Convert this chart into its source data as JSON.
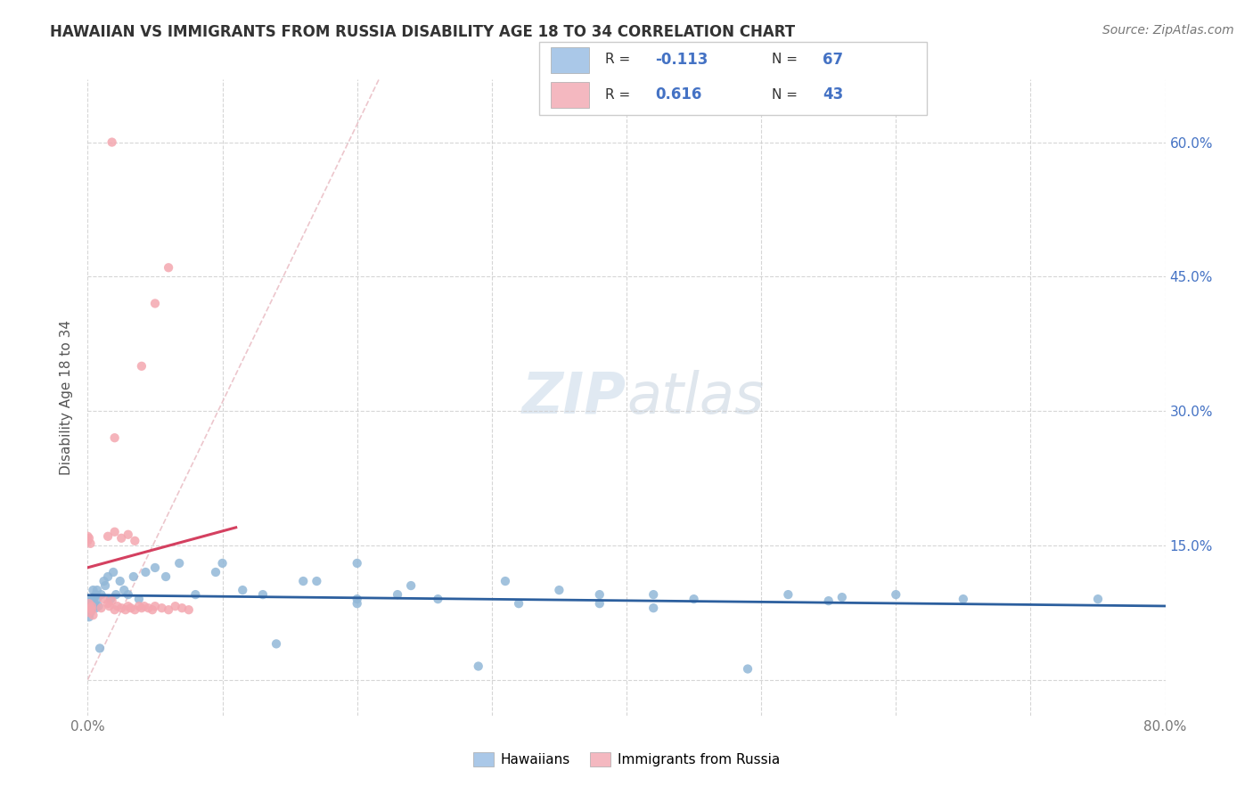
{
  "title": "HAWAIIAN VS IMMIGRANTS FROM RUSSIA DISABILITY AGE 18 TO 34 CORRELATION CHART",
  "source": "Source: ZipAtlas.com",
  "ylabel": "Disability Age 18 to 34",
  "xlim": [
    0.0,
    0.8
  ],
  "ylim": [
    -0.04,
    0.67
  ],
  "hawaiian_color": "#92b8d8",
  "russia_color": "#f4a7b0",
  "hawaiian_line_color": "#2c5f9e",
  "russia_line_color": "#d44060",
  "diag_color": "#e8b8c0",
  "R_hawaiian": -0.113,
  "N_hawaiian": 67,
  "R_russia": 0.616,
  "N_russia": 43,
  "watermark_zip": "ZIP",
  "watermark_atlas": "atlas",
  "hawaii_scatter_x": [
    0.0,
    0.0,
    0.0,
    0.001,
    0.001,
    0.001,
    0.002,
    0.002,
    0.003,
    0.003,
    0.003,
    0.004,
    0.004,
    0.004,
    0.005,
    0.005,
    0.006,
    0.006,
    0.007,
    0.007,
    0.008,
    0.009,
    0.01,
    0.01,
    0.012,
    0.013,
    0.015,
    0.016,
    0.018,
    0.018,
    0.02,
    0.022,
    0.023,
    0.025,
    0.027,
    0.028,
    0.03,
    0.032,
    0.035,
    0.038,
    0.04,
    0.042,
    0.045,
    0.048,
    0.05,
    0.055,
    0.06,
    0.065,
    0.07,
    0.075,
    0.08,
    0.085,
    0.09,
    0.1,
    0.11,
    0.12,
    0.13,
    0.14,
    0.16,
    0.18,
    0.2,
    0.25,
    0.31,
    0.38,
    0.45,
    0.58,
    0.75
  ],
  "hawaii_scatter_y": [
    0.08,
    0.06,
    0.09,
    0.075,
    0.085,
    0.065,
    0.09,
    0.1,
    0.08,
    0.095,
    0.07,
    0.085,
    0.105,
    0.075,
    0.09,
    0.1,
    0.095,
    0.08,
    0.11,
    0.09,
    0.075,
    0.085,
    0.12,
    0.1,
    0.095,
    0.115,
    0.09,
    0.13,
    0.095,
    0.11,
    0.085,
    0.105,
    0.095,
    0.085,
    0.1,
    0.12,
    0.09,
    0.105,
    0.13,
    0.095,
    0.13,
    0.11,
    0.12,
    0.095,
    0.135,
    0.11,
    0.12,
    0.095,
    0.11,
    0.08,
    0.105,
    0.09,
    0.085,
    0.1,
    0.085,
    0.095,
    0.09,
    0.085,
    0.1,
    0.09,
    0.08,
    0.095,
    0.085,
    0.08,
    0.09,
    0.095,
    0.09
  ],
  "russia_scatter_x": [
    0.0,
    0.0,
    0.001,
    0.001,
    0.001,
    0.002,
    0.002,
    0.003,
    0.003,
    0.004,
    0.004,
    0.005,
    0.005,
    0.006,
    0.006,
    0.007,
    0.008,
    0.008,
    0.009,
    0.01,
    0.01,
    0.012,
    0.013,
    0.015,
    0.015,
    0.016,
    0.017,
    0.018,
    0.019,
    0.02,
    0.02,
    0.022,
    0.025,
    0.028,
    0.03,
    0.032,
    0.035,
    0.038,
    0.04,
    0.042,
    0.045,
    0.05,
    0.06
  ],
  "russia_scatter_y": [
    0.15,
    0.16,
    0.08,
    0.09,
    0.155,
    0.145,
    0.16,
    0.155,
    0.09,
    0.15,
    0.1,
    0.08,
    0.165,
    0.08,
    0.165,
    0.25,
    0.27,
    0.165,
    0.32,
    0.38,
    0.16,
    0.35,
    0.42,
    0.34,
    0.46,
    0.16,
    0.165,
    0.16,
    0.165,
    0.085,
    0.165,
    0.16,
    0.165,
    0.16,
    0.165,
    0.08,
    0.165,
    0.095,
    0.16,
    0.165,
    0.16,
    0.165,
    0.085
  ]
}
